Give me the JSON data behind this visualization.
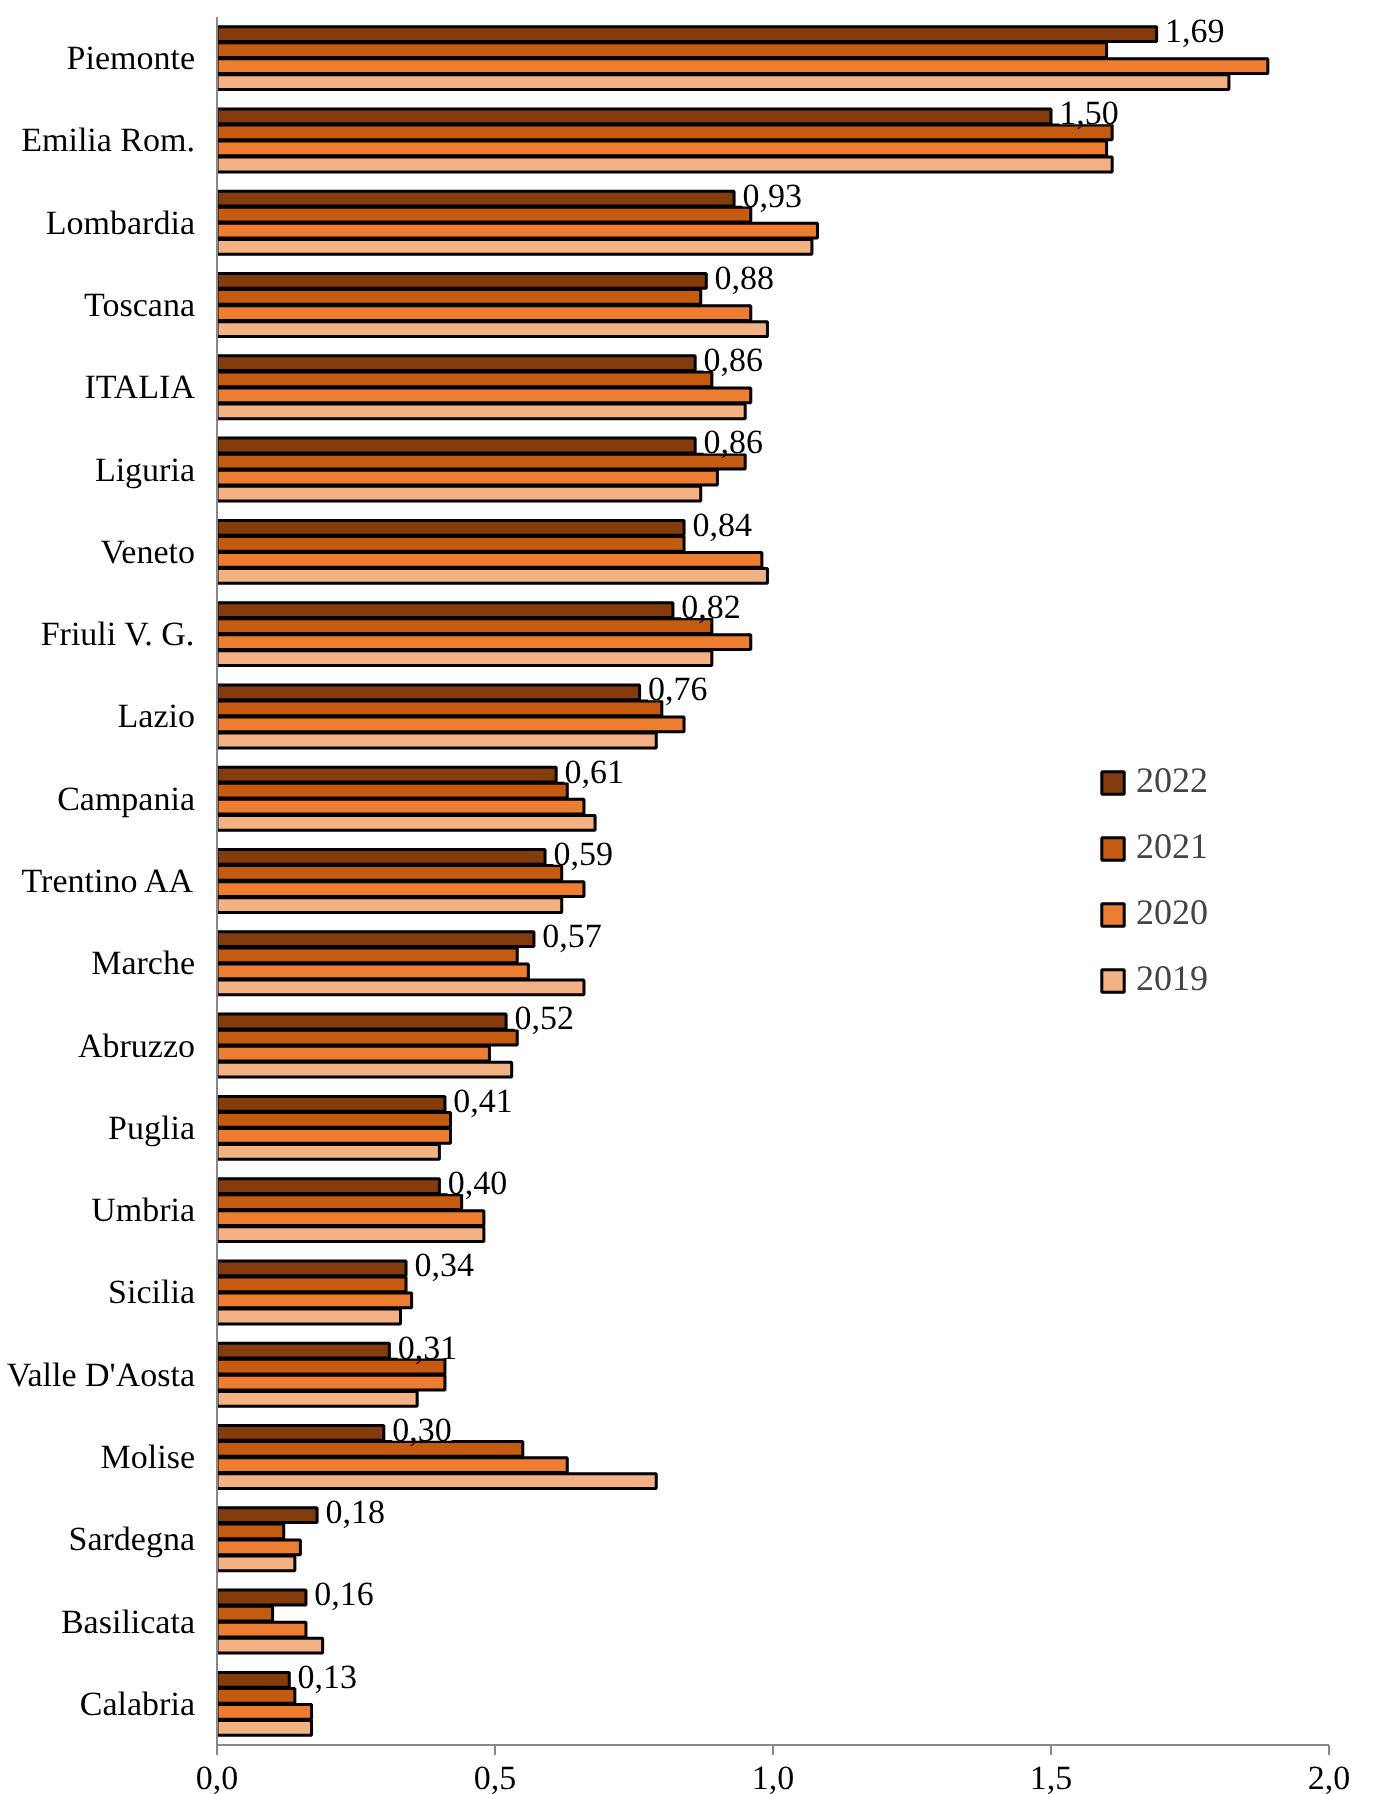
{
  "chart_data": {
    "type": "bar",
    "orientation": "horizontal",
    "categories": [
      "Piemonte",
      "Emilia Rom.",
      "Lombardia",
      "Toscana",
      "ITALIA",
      "Liguria",
      "Veneto",
      "Friuli V. G.",
      "Lazio",
      "Campania",
      "Trentino AA",
      "Marche",
      "Abruzzo",
      "Puglia",
      "Umbria",
      "Sicilia",
      "Valle D'Aosta",
      "Molise",
      "Sardegna",
      "Basilicata",
      "Calabria"
    ],
    "series": [
      {
        "name": "2022",
        "color": "#843c0c",
        "values": [
          1.69,
          1.5,
          0.93,
          0.88,
          0.86,
          0.86,
          0.84,
          0.82,
          0.76,
          0.61,
          0.59,
          0.57,
          0.52,
          0.41,
          0.4,
          0.34,
          0.31,
          0.3,
          0.18,
          0.16,
          0.13
        ],
        "value_labels": [
          "1,69",
          "1,50",
          "0,93",
          "0,88",
          "0,86",
          "0,86",
          "0,84",
          "0,82",
          "0,76",
          "0,61",
          "0,59",
          "0,57",
          "0,52",
          "0,41",
          "0,40",
          "0,34",
          "0,31",
          "0,30",
          "0,18",
          "0,16",
          "0,13"
        ]
      },
      {
        "name": "2021",
        "color": "#c55a11",
        "values": [
          1.6,
          1.61,
          0.96,
          0.87,
          0.89,
          0.95,
          0.84,
          0.89,
          0.8,
          0.63,
          0.62,
          0.54,
          0.54,
          0.42,
          0.44,
          0.34,
          0.41,
          0.55,
          0.12,
          0.1,
          0.14
        ]
      },
      {
        "name": "2020",
        "color": "#ed7d31",
        "values": [
          1.89,
          1.6,
          1.08,
          0.96,
          0.96,
          0.9,
          0.98,
          0.96,
          0.84,
          0.66,
          0.66,
          0.56,
          0.49,
          0.42,
          0.48,
          0.35,
          0.41,
          0.63,
          0.15,
          0.16,
          0.17
        ]
      },
      {
        "name": "2019",
        "color": "#f4b183",
        "values": [
          1.82,
          1.61,
          1.07,
          0.99,
          0.95,
          0.87,
          0.99,
          0.89,
          0.79,
          0.68,
          0.62,
          0.66,
          0.53,
          0.4,
          0.48,
          0.33,
          0.36,
          0.79,
          0.14,
          0.19,
          0.17
        ]
      }
    ],
    "xlim": [
      0,
      2
    ],
    "xticks": [
      {
        "value": 0,
        "label": "0,0"
      },
      {
        "value": 0.5,
        "label": "0,5"
      },
      {
        "value": 1,
        "label": "1,0"
      },
      {
        "value": 1.5,
        "label": "1,5"
      },
      {
        "value": 2,
        "label": "2,0"
      }
    ],
    "grid": false,
    "legend": "right"
  }
}
